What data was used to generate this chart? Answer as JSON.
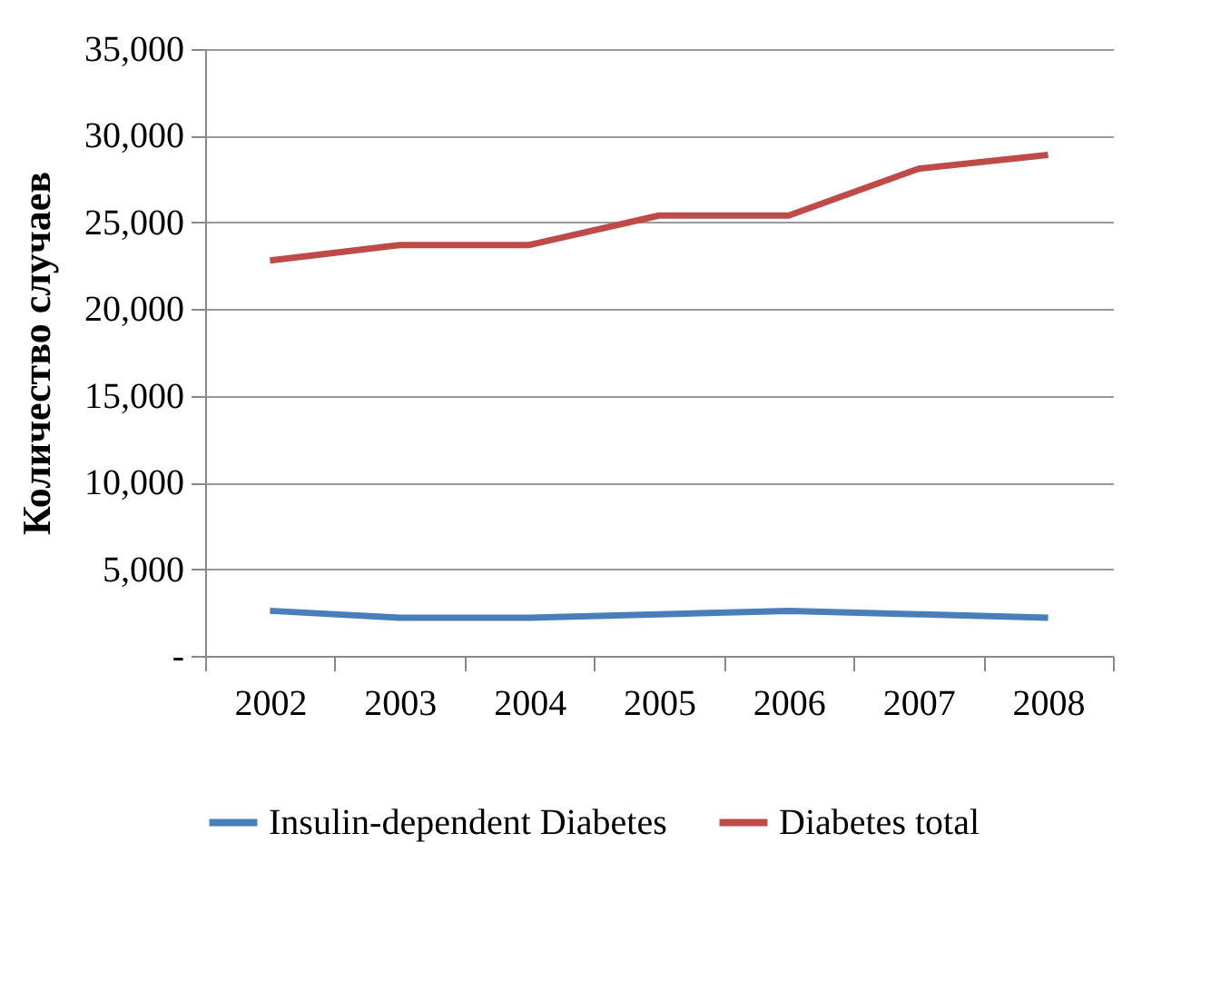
{
  "chart_data": {
    "type": "line",
    "ylabel": "Количество случаев",
    "categories": [
      "2002",
      "2003",
      "2004",
      "2005",
      "2006",
      "2007",
      "2008"
    ],
    "series": [
      {
        "name": "Insulin-dependent Diabetes",
        "color": "#4a7ebb",
        "values": [
          2600,
          2200,
          2200,
          2400,
          2600,
          2400,
          2200
        ]
      },
      {
        "name": "Diabetes total",
        "color": "#be4b48",
        "values": [
          22800,
          23700,
          23700,
          25400,
          25400,
          28100,
          28900
        ]
      }
    ],
    "ylim": [
      0,
      35000
    ],
    "yticks": [
      {
        "value": 0,
        "label": "-"
      },
      {
        "value": 5000,
        "label": "5,000"
      },
      {
        "value": 10000,
        "label": "10,000"
      },
      {
        "value": 15000,
        "label": "15,000"
      },
      {
        "value": 20000,
        "label": "20,000"
      },
      {
        "value": 25000,
        "label": "25,000"
      },
      {
        "value": 30000,
        "label": "30,000"
      },
      {
        "value": 35000,
        "label": "35,000"
      }
    ],
    "grid": "y",
    "legend": "bottom",
    "marker": "none",
    "line_style": "solid"
  }
}
